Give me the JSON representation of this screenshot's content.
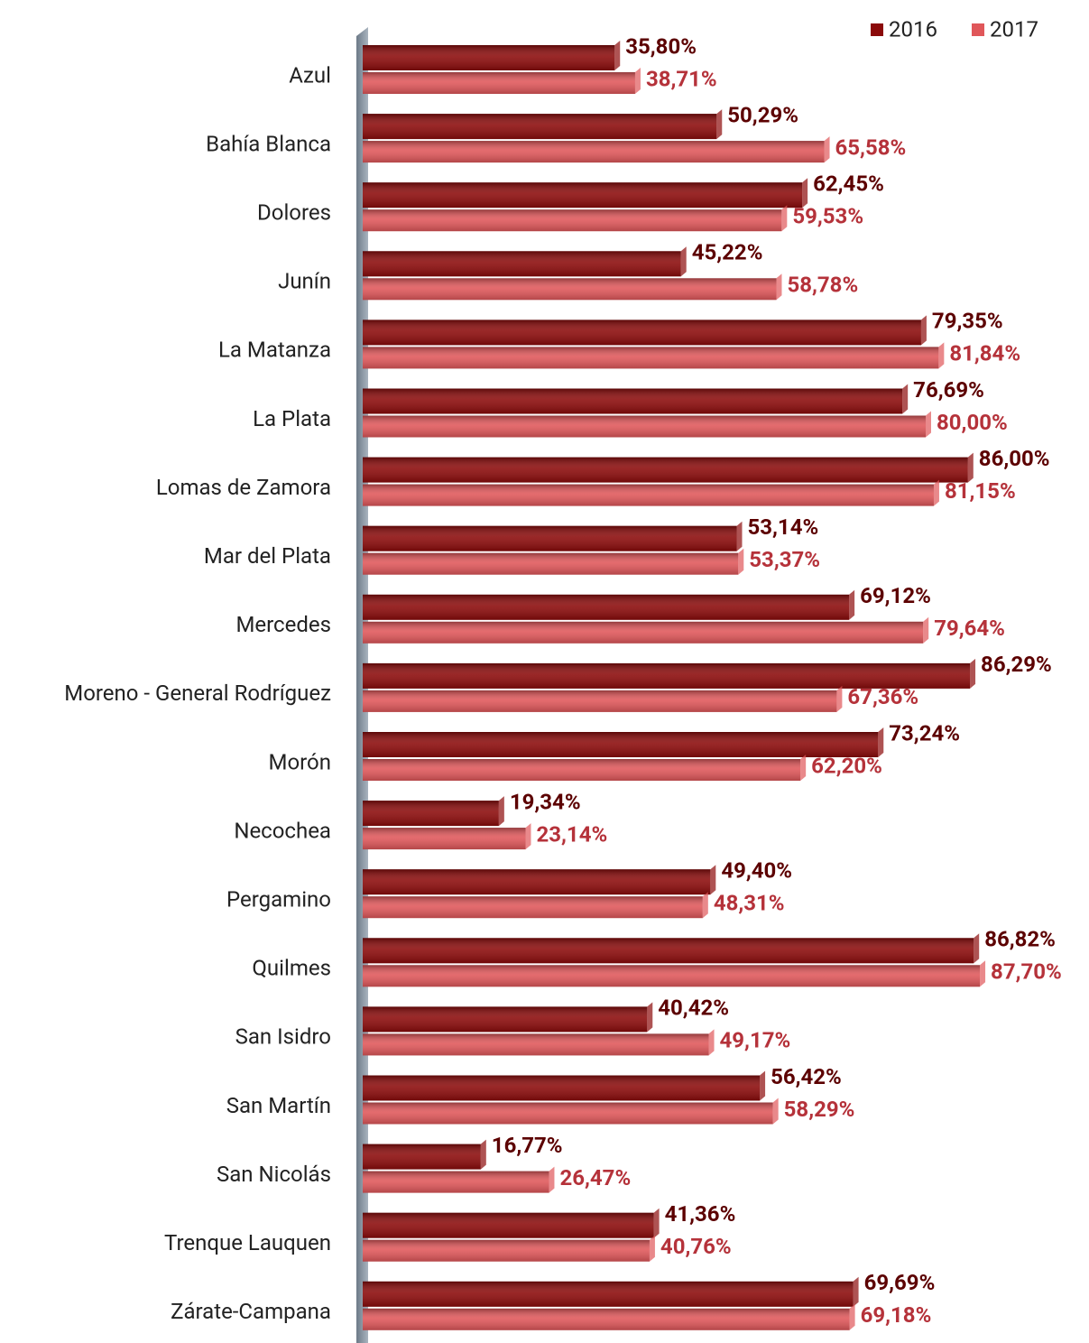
{
  "chart_data": {
    "type": "bar",
    "orientation": "horizontal",
    "categories": [
      "Azul",
      "Bahía Blanca",
      "Dolores",
      "Junín",
      "La Matanza",
      "La Plata",
      "Lomas de Zamora",
      "Mar del Plata",
      "Mercedes",
      "Moreno - General Rodríguez",
      "Morón",
      "Necochea",
      "Pergamino",
      "Quilmes",
      "San Isidro",
      "San Martín",
      "San Nicolás",
      "Trenque Lauquen",
      "Zárate-Campana"
    ],
    "series": [
      {
        "name": "2016",
        "color": "#8b0a0a",
        "label_color": "#5c0000",
        "values": [
          35.8,
          50.29,
          62.45,
          45.22,
          79.35,
          76.69,
          86.0,
          53.14,
          69.12,
          86.29,
          73.24,
          19.34,
          49.4,
          86.82,
          40.42,
          56.42,
          16.77,
          41.36,
          69.69
        ],
        "value_labels": [
          "35,80%",
          "50,29%",
          "62,45%",
          "45,22%",
          "79,35%",
          "76,69%",
          "86,00%",
          "53,14%",
          "69,12%",
          "86,29%",
          "73,24%",
          "19,34%",
          "49,40%",
          "86,82%",
          "40,42%",
          "56,42%",
          "16,77%",
          "41,36%",
          "69,69%"
        ]
      },
      {
        "name": "2017",
        "color": "#e0575a",
        "label_color": "#b5323a",
        "values": [
          38.71,
          65.58,
          59.53,
          58.78,
          81.84,
          80.0,
          81.15,
          53.37,
          79.64,
          67.36,
          62.2,
          23.14,
          48.31,
          87.7,
          49.17,
          58.29,
          26.47,
          40.76,
          69.18
        ],
        "value_labels": [
          "38,71%",
          "65,58%",
          "59,53%",
          "58,78%",
          "81,84%",
          "80,00%",
          "81,15%",
          "53,37%",
          "79,64%",
          "67,36%",
          "62,20%",
          "23,14%",
          "48,31%",
          "87,70%",
          "49,17%",
          "58,29%",
          "26,47%",
          "40,76%",
          "69,18%"
        ]
      }
    ],
    "xlim": [
      0,
      100
    ],
    "legend": "top-right"
  }
}
